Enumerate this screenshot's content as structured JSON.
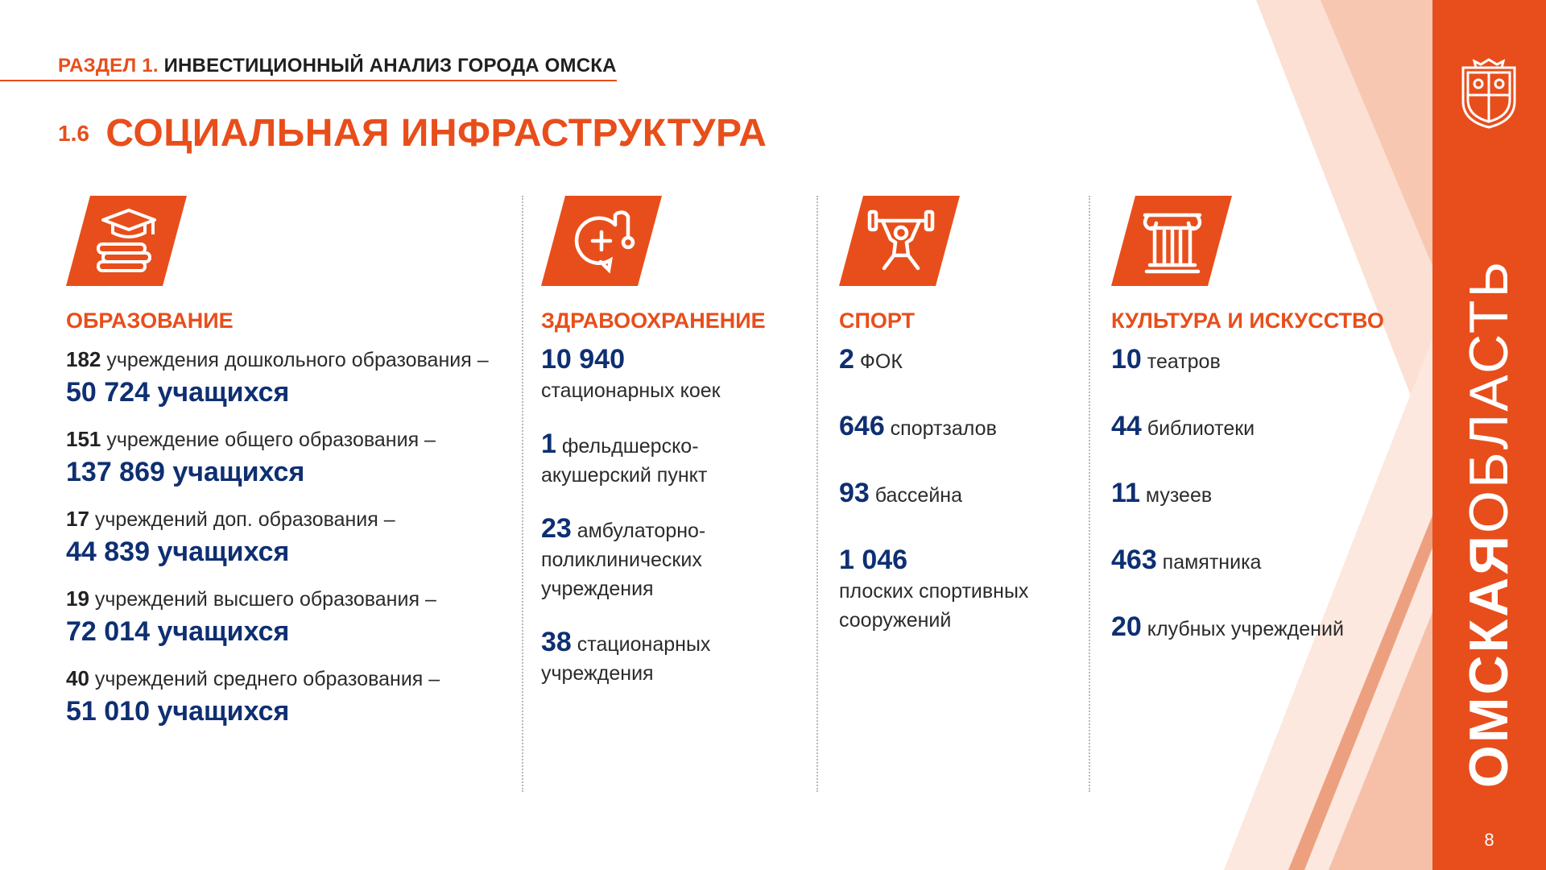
{
  "section": {
    "accent": "РАЗДЕЛ 1.",
    "rest": "ИНВЕСТИЦИОННЫЙ АНАЛИЗ ГОРОДА ОМСКА"
  },
  "title": {
    "number": "1.6",
    "text": "СОЦИАЛЬНАЯ ИНФРАСТРУКТУРА"
  },
  "colors": {
    "accent": "#e84e1b",
    "navy": "#0e2f72",
    "panel": "#e84e1b"
  },
  "education": {
    "icon": "graduation-cap-books-icon",
    "title": "ОБРАЗОВАНИЕ",
    "items": [
      {
        "num": "182",
        "desc": " учреждения дошкольного образования –",
        "big": "50 724 учащихся"
      },
      {
        "num": "151",
        "desc": " учреждение общего образования –",
        "big": "137 869 учащихся"
      },
      {
        "num": "17",
        "desc": " учреждений доп. образования –",
        "big": "44 839 учащихся"
      },
      {
        "num": "19",
        "desc": " учреждений высшего образования –",
        "big": "72 014 учащихся"
      },
      {
        "num": "40",
        "desc": " учреждений среднего образования –",
        "big": "51 010 учащихся"
      }
    ]
  },
  "health": {
    "icon": "stethoscope-cross-icon",
    "title": "ЗДРАВООХРАНЕНИЕ",
    "items": [
      {
        "num": "10 940",
        "desc": "стационарных коек"
      },
      {
        "num": "1",
        "desc": " фельдшерско-акушерский пункт"
      },
      {
        "num": "23",
        "desc": " амбулаторно-поликлинических учреждения"
      },
      {
        "num": "38",
        "desc": " стационарных учреждения"
      }
    ]
  },
  "sport": {
    "icon": "weightlifter-icon",
    "title": "СПОРТ",
    "items": [
      {
        "num": "2",
        "desc": " ФОК"
      },
      {
        "num": "646",
        "desc": " спортзалов"
      },
      {
        "num": "93",
        "desc": " бассейна"
      },
      {
        "num": "1 046",
        "desc": "плоских спортивных сооружений"
      }
    ]
  },
  "culture": {
    "icon": "column-icon",
    "title": "КУЛЬТУРА И ИСКУССТВО",
    "items": [
      {
        "num": "10",
        "desc": " театров"
      },
      {
        "num": "44",
        "desc": " библиотеки"
      },
      {
        "num": "11",
        "desc": " музеев"
      },
      {
        "num": "463",
        "desc": " памятника"
      },
      {
        "num": "20",
        "desc": " клубных учреждений"
      }
    ]
  },
  "sidebar": {
    "brand_bold": "ОМСКАЯ",
    "brand_light": "ОБЛАСТЬ",
    "page_number": "8"
  }
}
